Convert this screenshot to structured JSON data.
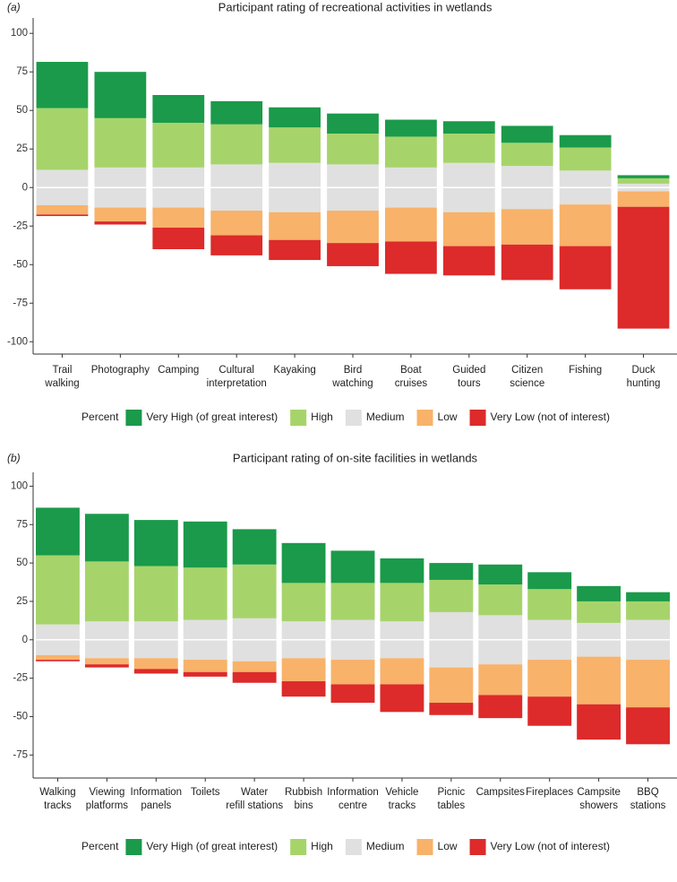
{
  "chart_data": [
    {
      "type": "diverging-bar",
      "label": "(a)",
      "title": "Participant rating of recreational activities in wetlands",
      "categories": [
        [
          "Trail",
          "walking"
        ],
        [
          "Photography"
        ],
        [
          "Camping"
        ],
        [
          "Cultural",
          "interpretation"
        ],
        [
          "Kayaking"
        ],
        [
          "Bird",
          "watching"
        ],
        [
          "Boat",
          "cruises"
        ],
        [
          "Guided",
          "tours"
        ],
        [
          "Citizen",
          "science"
        ],
        [
          "Fishing"
        ],
        [
          "Duck",
          "hunting"
        ]
      ],
      "legend_title": "Percent",
      "series": [
        {
          "name": "Very High (of great interest)",
          "color": "#1a9a4a",
          "values": [
            30,
            30,
            18,
            15,
            13,
            13,
            11,
            8,
            11,
            8,
            2
          ]
        },
        {
          "name": "High",
          "color": "#a6d46a",
          "values": [
            40,
            32,
            29,
            26,
            23,
            20,
            20,
            19,
            15,
            15,
            3.5
          ]
        },
        {
          "name": "Medium",
          "color": "#e0e0e0",
          "values": [
            23,
            26,
            26,
            30,
            32,
            30,
            26,
            32,
            28,
            22,
            5
          ]
        },
        {
          "name": "Low",
          "color": "#f8b26a",
          "values": [
            6,
            9,
            13,
            16,
            18,
            21,
            22,
            22,
            23,
            27,
            10
          ]
        },
        {
          "name": "Very Low (not of interest)",
          "color": "#dd2a2a",
          "values": [
            1,
            2,
            14,
            13,
            13,
            15,
            21,
            19,
            23,
            28,
            79
          ]
        }
      ],
      "ylim": [
        -108,
        110
      ],
      "yticks": [
        100,
        75,
        50,
        25,
        0,
        -25,
        -50,
        -75,
        -100
      ]
    },
    {
      "type": "diverging-bar",
      "label": "(b)",
      "title": "Participant rating of on-site facilities in wetlands",
      "categories": [
        [
          "Walking",
          "tracks"
        ],
        [
          "Viewing",
          "platforms"
        ],
        [
          "Information",
          "panels"
        ],
        [
          "Toilets"
        ],
        [
          "Water",
          "refill stations"
        ],
        [
          "Rubbish",
          "bins"
        ],
        [
          "Information",
          "centre"
        ],
        [
          "Vehicle",
          "tracks"
        ],
        [
          "Picnic",
          "tables"
        ],
        [
          "Campsites"
        ],
        [
          "Fireplaces"
        ],
        [
          "Campsite",
          "showers"
        ],
        [
          "BBQ",
          "stations"
        ]
      ],
      "legend_title": "Percent",
      "series": [
        {
          "name": "Very High (of great interest)",
          "color": "#1a9a4a",
          "values": [
            31,
            31,
            30,
            30,
            23,
            26,
            21,
            16,
            11,
            13,
            11,
            10,
            6
          ]
        },
        {
          "name": "High",
          "color": "#a6d46a",
          "values": [
            45,
            39,
            36,
            34,
            35,
            25,
            24,
            25,
            21,
            20,
            20,
            14,
            12
          ]
        },
        {
          "name": "Medium",
          "color": "#e0e0e0",
          "values": [
            20,
            24,
            24,
            26,
            28,
            24,
            26,
            24,
            36,
            32,
            26,
            22,
            26
          ]
        },
        {
          "name": "Low",
          "color": "#f8b26a",
          "values": [
            3,
            4,
            7,
            8,
            7,
            15,
            16,
            17,
            23,
            20,
            24,
            31,
            31
          ]
        },
        {
          "name": "Very Low (not of interest)",
          "color": "#dd2a2a",
          "values": [
            1,
            2,
            3,
            3,
            7,
            10,
            12,
            18,
            8,
            15,
            19,
            23,
            24
          ]
        }
      ],
      "ylim": [
        -90,
        109
      ],
      "yticks": [
        100,
        75,
        50,
        25,
        0,
        -25,
        -50,
        -75
      ]
    }
  ]
}
